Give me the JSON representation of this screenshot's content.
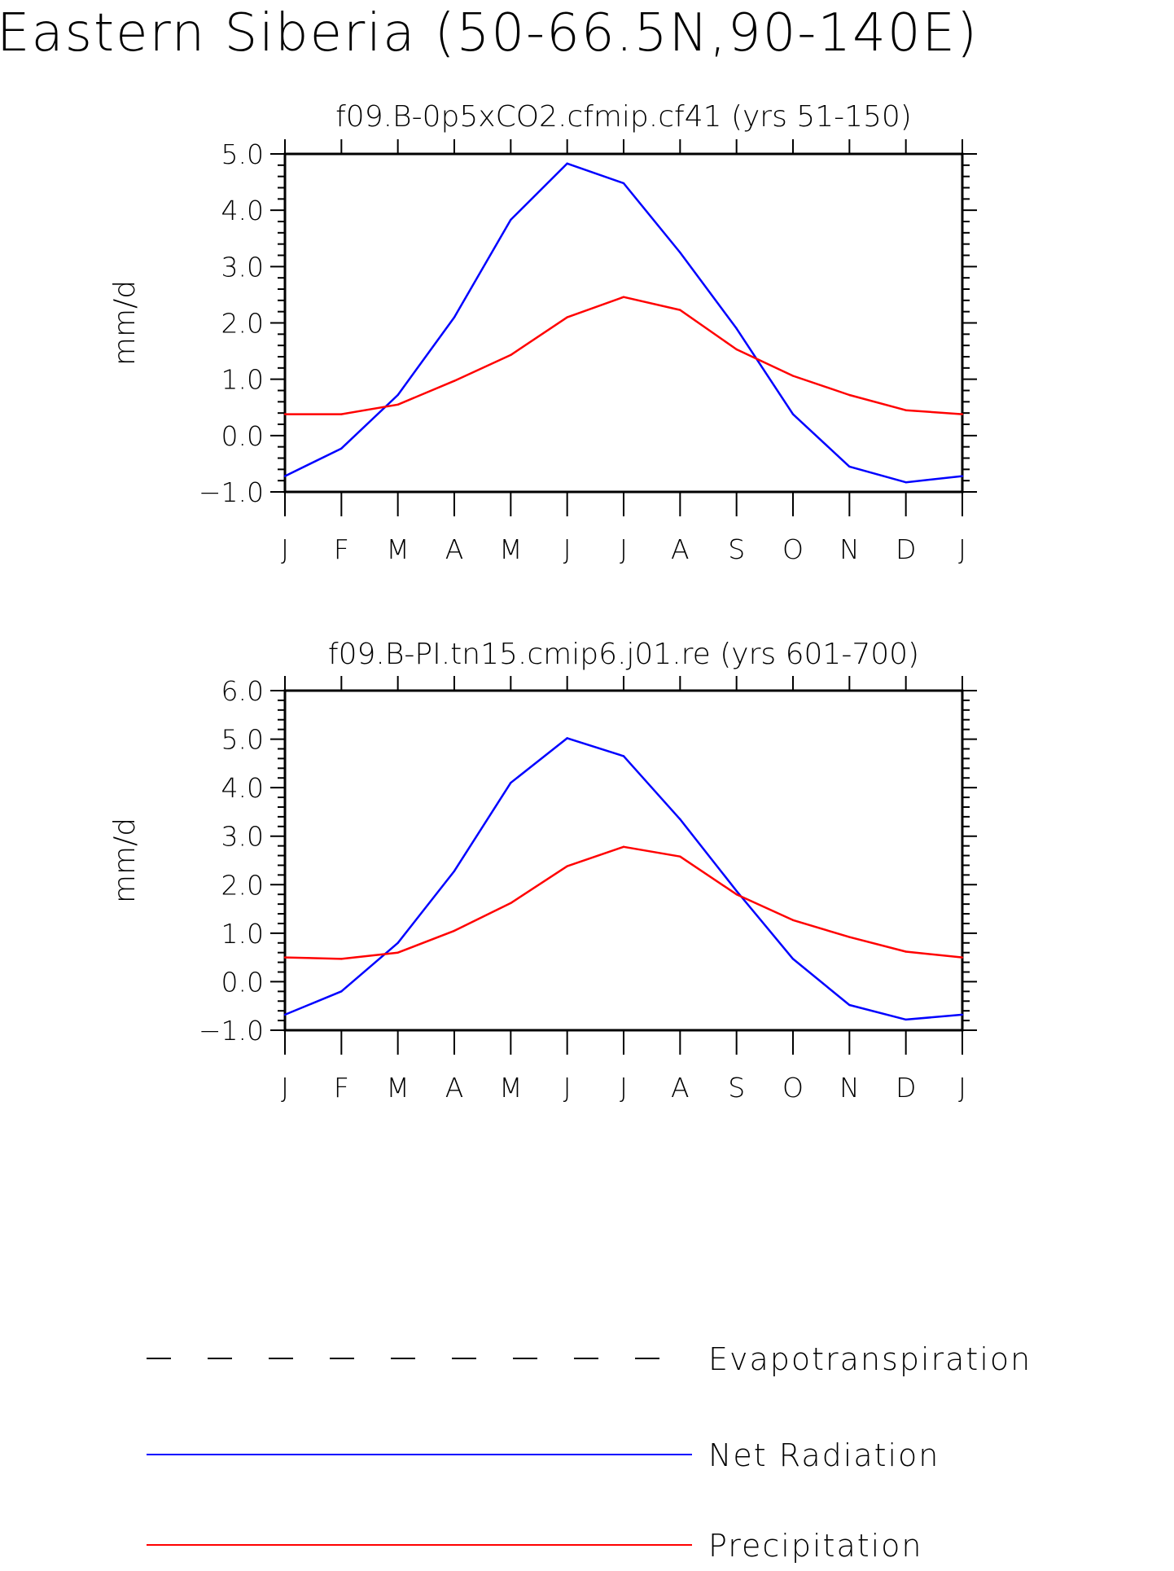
{
  "title": "Eastern Siberia (50-66.5N,90-140E)",
  "colors": {
    "net_radiation": "#0000ff",
    "precipitation": "#ff0000",
    "evapotranspiration": "#000000"
  },
  "legend": [
    {
      "label": "Evapotranspiration",
      "style": "dashed",
      "color": "#000000"
    },
    {
      "label": "Net Radiation",
      "style": "solid",
      "color": "#0000ff"
    },
    {
      "label": "Precipitation",
      "style": "solid",
      "color": "#ff0000"
    }
  ],
  "chart_data": [
    {
      "type": "line",
      "title": "f09.B-0p5xCO2.cfmip.cf41 (yrs 51-150)",
      "ylabel": "mm/d",
      "xlabel": "",
      "ylim": [
        -1.0,
        5.0
      ],
      "yticks": [
        "-1.0",
        "0.0",
        "1.0",
        "2.0",
        "3.0",
        "4.0",
        "5.0"
      ],
      "categories": [
        "J",
        "F",
        "M",
        "A",
        "M",
        "J",
        "J",
        "A",
        "S",
        "O",
        "N",
        "D",
        "J"
      ],
      "series": [
        {
          "name": "Net Radiation",
          "color": "#0000ff",
          "values": [
            -0.72,
            -0.23,
            0.72,
            2.1,
            3.83,
            4.83,
            4.48,
            3.25,
            1.9,
            0.38,
            -0.55,
            -0.83,
            -0.72
          ]
        },
        {
          "name": "Precipitation",
          "color": "#ff0000",
          "values": [
            0.38,
            0.38,
            0.55,
            0.97,
            1.43,
            2.1,
            2.46,
            2.23,
            1.53,
            1.06,
            0.72,
            0.45,
            0.38
          ]
        }
      ]
    },
    {
      "type": "line",
      "title": "f09.B-PI.tn15.cmip6.j01.re (yrs 601-700)",
      "ylabel": "mm/d",
      "xlabel": "",
      "ylim": [
        -1.0,
        6.0
      ],
      "yticks": [
        "-1.0",
        "0.0",
        "1.0",
        "2.0",
        "3.0",
        "4.0",
        "5.0",
        "6.0"
      ],
      "categories": [
        "J",
        "F",
        "M",
        "A",
        "M",
        "J",
        "J",
        "A",
        "S",
        "O",
        "N",
        "D",
        "J"
      ],
      "series": [
        {
          "name": "Net Radiation",
          "color": "#0000ff",
          "values": [
            -0.68,
            -0.2,
            0.8,
            2.28,
            4.1,
            5.02,
            4.65,
            3.35,
            1.87,
            0.47,
            -0.48,
            -0.78,
            -0.68
          ]
        },
        {
          "name": "Precipitation",
          "color": "#ff0000",
          "values": [
            0.5,
            0.47,
            0.6,
            1.05,
            1.62,
            2.38,
            2.78,
            2.58,
            1.8,
            1.27,
            0.92,
            0.62,
            0.5
          ]
        }
      ]
    }
  ]
}
